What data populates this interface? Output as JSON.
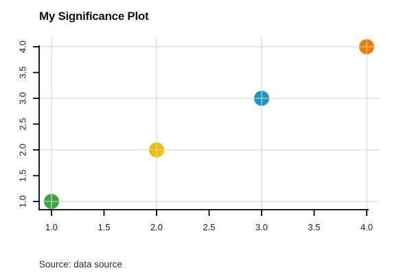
{
  "chart_data": {
    "type": "scatter",
    "title": "My Significance Plot",
    "caption": "Source: data source",
    "x": [
      1,
      2,
      3,
      4
    ],
    "y": [
      1,
      2,
      3,
      4
    ],
    "points": [
      {
        "x": 1,
        "y": 1,
        "color": "#3DA53D",
        "color_name": "green"
      },
      {
        "x": 2,
        "y": 2,
        "color": "#F0BE00",
        "color_name": "gold"
      },
      {
        "x": 3,
        "y": 3,
        "color": "#1795BF",
        "color_name": "blue"
      },
      {
        "x": 4,
        "y": 4,
        "color": "#EE7A00",
        "color_name": "orange"
      }
    ],
    "point_radius": 11,
    "x_tick_labels": [
      "1.0",
      "1.5",
      "2.0",
      "2.5",
      "3.0",
      "3.5",
      "4.0"
    ],
    "y_tick_labels": [
      "1.0",
      "1.5",
      "2.0",
      "2.5",
      "3.0",
      "3.5",
      "4.0"
    ],
    "x_tick_values": [
      1,
      1.5,
      2,
      2.5,
      3,
      3.5,
      4
    ],
    "y_tick_values": [
      1,
      1.5,
      2,
      2.5,
      3,
      3.5,
      4
    ],
    "x_grid_values": [
      1,
      2,
      3,
      4
    ],
    "y_grid_values": [
      1,
      2,
      3,
      4
    ],
    "xlim": [
      1,
      4
    ],
    "ylim": [
      1,
      4
    ],
    "grid": true,
    "grid_over_points": true,
    "legend": "none",
    "xlabel": "",
    "ylabel": "",
    "styles": {
      "grid_color": "#D6D6D6",
      "axis_color": "#000000",
      "title_color": "#111111",
      "tick_label_color": "#1A1A1A",
      "caption_color": "#2B2B2B",
      "background": "#FFFFFF"
    }
  }
}
